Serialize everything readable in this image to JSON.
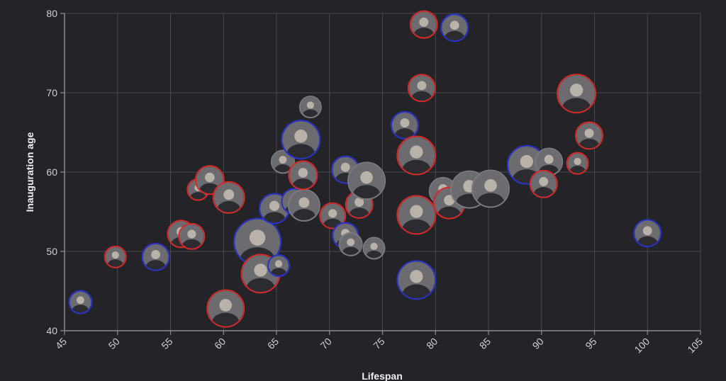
{
  "chart_data": {
    "type": "scatter",
    "title": "",
    "xlabel": "Lifespan",
    "ylabel": "Inauguration age",
    "xlim": [
      45,
      105
    ],
    "ylim": [
      40,
      80
    ],
    "x_ticks": [
      45,
      50,
      55,
      60,
      65,
      70,
      75,
      80,
      85,
      90,
      95,
      100,
      105
    ],
    "y_ticks": [
      40,
      50,
      60,
      70,
      80
    ],
    "grid": true,
    "legend": null,
    "marker": "circular portrait photo with party-colored border",
    "party_colors": {
      "Republican": "#d42a2a",
      "Democratic": "#2a32c8",
      "Other": "#7a7a80"
    },
    "points": [
      {
        "x": 46.5,
        "y": 43.6,
        "r": 16,
        "party": "Democratic"
      },
      {
        "x": 49.8,
        "y": 49.3,
        "r": 15,
        "party": "Republican"
      },
      {
        "x": 53.6,
        "y": 49.3,
        "r": 19,
        "party": "Democratic"
      },
      {
        "x": 56.0,
        "y": 52.2,
        "r": 19,
        "party": "Republican"
      },
      {
        "x": 57.0,
        "y": 51.9,
        "r": 18,
        "party": "Republican"
      },
      {
        "x": 57.6,
        "y": 57.8,
        "r": 15,
        "party": "Republican"
      },
      {
        "x": 58.7,
        "y": 59.0,
        "r": 20,
        "party": "Republican"
      },
      {
        "x": 60.5,
        "y": 56.8,
        "r": 22,
        "party": "Republican"
      },
      {
        "x": 60.2,
        "y": 42.8,
        "r": 26,
        "party": "Republican"
      },
      {
        "x": 63.2,
        "y": 51.2,
        "r": 33,
        "party": "Democratic"
      },
      {
        "x": 63.5,
        "y": 47.2,
        "r": 27,
        "party": "Republican"
      },
      {
        "x": 65.2,
        "y": 48.2,
        "r": 15,
        "party": "Democratic"
      },
      {
        "x": 64.8,
        "y": 55.4,
        "r": 21,
        "party": "Democratic"
      },
      {
        "x": 65.6,
        "y": 61.3,
        "r": 16,
        "party": "Other"
      },
      {
        "x": 66.7,
        "y": 56.3,
        "r": 18,
        "party": "Democratic"
      },
      {
        "x": 67.6,
        "y": 55.8,
        "r": 22,
        "party": "Other"
      },
      {
        "x": 67.5,
        "y": 59.6,
        "r": 20,
        "party": "Republican"
      },
      {
        "x": 67.3,
        "y": 64.1,
        "r": 27,
        "party": "Democratic"
      },
      {
        "x": 68.2,
        "y": 68.2,
        "r": 15,
        "party": "Other"
      },
      {
        "x": 70.3,
        "y": 54.5,
        "r": 18,
        "party": "Republican"
      },
      {
        "x": 71.5,
        "y": 52.0,
        "r": 18,
        "party": "Democratic"
      },
      {
        "x": 72.0,
        "y": 50.9,
        "r": 16,
        "party": "Other"
      },
      {
        "x": 71.5,
        "y": 60.3,
        "r": 19,
        "party": "Democratic"
      },
      {
        "x": 72.8,
        "y": 55.9,
        "r": 19,
        "party": "Republican"
      },
      {
        "x": 73.5,
        "y": 58.9,
        "r": 26,
        "party": "Other"
      },
      {
        "x": 74.2,
        "y": 50.4,
        "r": 15,
        "party": "Other"
      },
      {
        "x": 77.1,
        "y": 65.9,
        "r": 19,
        "party": "Democratic"
      },
      {
        "x": 78.2,
        "y": 62.1,
        "r": 27,
        "party": "Republican"
      },
      {
        "x": 78.2,
        "y": 54.6,
        "r": 27,
        "party": "Republican"
      },
      {
        "x": 78.2,
        "y": 46.4,
        "r": 27,
        "party": "Democratic"
      },
      {
        "x": 78.7,
        "y": 70.6,
        "r": 19,
        "party": "Republican"
      },
      {
        "x": 78.9,
        "y": 78.6,
        "r": 19,
        "party": "Republican"
      },
      {
        "x": 81.8,
        "y": 78.2,
        "r": 19,
        "party": "Democratic"
      },
      {
        "x": 80.7,
        "y": 57.6,
        "r": 19,
        "party": "Other"
      },
      {
        "x": 81.3,
        "y": 56.1,
        "r": 22,
        "party": "Republican"
      },
      {
        "x": 83.2,
        "y": 57.8,
        "r": 26,
        "party": "Other"
      },
      {
        "x": 85.2,
        "y": 57.9,
        "r": 26,
        "party": "Other"
      },
      {
        "x": 88.6,
        "y": 60.9,
        "r": 27,
        "party": "Democratic"
      },
      {
        "x": 90.7,
        "y": 61.3,
        "r": 19,
        "party": "Other"
      },
      {
        "x": 90.2,
        "y": 58.5,
        "r": 19,
        "party": "Republican"
      },
      {
        "x": 93.3,
        "y": 69.9,
        "r": 27,
        "party": "Republican"
      },
      {
        "x": 94.5,
        "y": 64.6,
        "r": 19,
        "party": "Republican"
      },
      {
        "x": 93.4,
        "y": 61.1,
        "r": 15,
        "party": "Republican"
      },
      {
        "x": 100.0,
        "y": 52.3,
        "r": 19,
        "party": "Democratic"
      }
    ]
  },
  "axes": {
    "x_title": "Lifespan",
    "y_title": "Inauguration age",
    "x_ticks": [
      "45",
      "50",
      "55",
      "60",
      "65",
      "70",
      "75",
      "80",
      "85",
      "90",
      "95",
      "100",
      "105"
    ],
    "y_ticks": [
      "40",
      "50",
      "60",
      "70",
      "80"
    ]
  }
}
